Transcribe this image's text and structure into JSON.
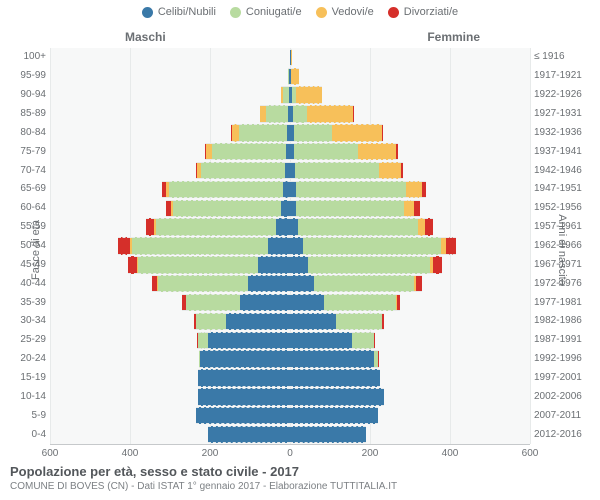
{
  "chart": {
    "type": "population-pyramid",
    "background_color": "#f7f8f8",
    "grid_color": "#e7eaea",
    "dash_color": "#9aa2a8",
    "text_color": "#6b6f73",
    "gender_left": "Maschi",
    "gender_right": "Femmine",
    "axis_left_title": "Fasce di età",
    "axis_right_title": "Anni di nascita",
    "xlim": 600,
    "xticks": [
      -600,
      -400,
      -200,
      0,
      200,
      400,
      600
    ],
    "xtick_labels": [
      "600",
      "400",
      "200",
      "0",
      "200",
      "400",
      "600"
    ],
    "legend": [
      {
        "label": "Celibi/Nubili",
        "color": "#3a79a8"
      },
      {
        "label": "Coniugati/e",
        "color": "#b8dba0"
      },
      {
        "label": "Vedovi/e",
        "color": "#f7c05a"
      },
      {
        "label": "Divorziati/e",
        "color": "#d52f2a"
      }
    ],
    "age_labels": [
      "100+",
      "95-99",
      "90-94",
      "85-89",
      "80-84",
      "75-79",
      "70-74",
      "65-69",
      "60-64",
      "55-59",
      "50-54",
      "45-49",
      "40-44",
      "35-39",
      "30-34",
      "25-29",
      "20-24",
      "15-19",
      "10-14",
      "5-9",
      "0-4"
    ],
    "birth_labels": [
      "≤ 1916",
      "1917-1921",
      "1922-1926",
      "1927-1931",
      "1932-1936",
      "1937-1941",
      "1942-1946",
      "1947-1951",
      "1952-1956",
      "1957-1961",
      "1962-1966",
      "1967-1971",
      "1972-1976",
      "1977-1981",
      "1982-1986",
      "1987-1991",
      "1992-1996",
      "1997-2001",
      "2002-2006",
      "2007-2011",
      "2012-2016"
    ],
    "rows": [
      {
        "m": {
          "single": 0,
          "married": 0,
          "widowed": 0,
          "divorced": 0
        },
        "f": {
          "single": 2,
          "married": 0,
          "widowed": 2,
          "divorced": 0
        }
      },
      {
        "m": {
          "single": 2,
          "married": 3,
          "widowed": 1,
          "divorced": 0
        },
        "f": {
          "single": 2,
          "married": 1,
          "widowed": 20,
          "divorced": 0
        }
      },
      {
        "m": {
          "single": 3,
          "married": 15,
          "widowed": 5,
          "divorced": 0
        },
        "f": {
          "single": 5,
          "married": 10,
          "widowed": 65,
          "divorced": 0
        }
      },
      {
        "m": {
          "single": 5,
          "married": 55,
          "widowed": 15,
          "divorced": 0
        },
        "f": {
          "single": 8,
          "married": 35,
          "widowed": 115,
          "divorced": 2
        }
      },
      {
        "m": {
          "single": 8,
          "married": 120,
          "widowed": 18,
          "divorced": 2
        },
        "f": {
          "single": 10,
          "married": 95,
          "widowed": 125,
          "divorced": 3
        }
      },
      {
        "m": {
          "single": 10,
          "married": 185,
          "widowed": 15,
          "divorced": 3
        },
        "f": {
          "single": 10,
          "married": 160,
          "widowed": 95,
          "divorced": 5
        }
      },
      {
        "m": {
          "single": 12,
          "married": 210,
          "widowed": 10,
          "divorced": 4
        },
        "f": {
          "single": 12,
          "married": 210,
          "widowed": 55,
          "divorced": 6
        }
      },
      {
        "m": {
          "single": 18,
          "married": 285,
          "widowed": 8,
          "divorced": 8
        },
        "f": {
          "single": 14,
          "married": 275,
          "widowed": 40,
          "divorced": 10
        }
      },
      {
        "m": {
          "single": 22,
          "married": 270,
          "widowed": 5,
          "divorced": 12
        },
        "f": {
          "single": 16,
          "married": 270,
          "widowed": 25,
          "divorced": 15
        }
      },
      {
        "m": {
          "single": 35,
          "married": 300,
          "widowed": 5,
          "divorced": 20
        },
        "f": {
          "single": 20,
          "married": 300,
          "widowed": 18,
          "divorced": 20
        }
      },
      {
        "m": {
          "single": 55,
          "married": 340,
          "widowed": 5,
          "divorced": 30
        },
        "f": {
          "single": 32,
          "married": 345,
          "widowed": 12,
          "divorced": 25
        }
      },
      {
        "m": {
          "single": 80,
          "married": 300,
          "widowed": 3,
          "divorced": 22
        },
        "f": {
          "single": 45,
          "married": 305,
          "widowed": 8,
          "divorced": 22
        }
      },
      {
        "m": {
          "single": 105,
          "married": 225,
          "widowed": 2,
          "divorced": 14
        },
        "f": {
          "single": 60,
          "married": 250,
          "widowed": 5,
          "divorced": 14
        }
      },
      {
        "m": {
          "single": 125,
          "married": 135,
          "widowed": 1,
          "divorced": 8
        },
        "f": {
          "single": 85,
          "married": 180,
          "widowed": 3,
          "divorced": 8
        }
      },
      {
        "m": {
          "single": 160,
          "married": 75,
          "widowed": 0,
          "divorced": 4
        },
        "f": {
          "single": 115,
          "married": 115,
          "widowed": 1,
          "divorced": 5
        }
      },
      {
        "m": {
          "single": 205,
          "married": 25,
          "widowed": 0,
          "divorced": 2
        },
        "f": {
          "single": 155,
          "married": 55,
          "widowed": 0,
          "divorced": 2
        }
      },
      {
        "m": {
          "single": 225,
          "married": 3,
          "widowed": 0,
          "divorced": 0
        },
        "f": {
          "single": 210,
          "married": 10,
          "widowed": 0,
          "divorced": 1
        }
      },
      {
        "m": {
          "single": 230,
          "married": 0,
          "widowed": 0,
          "divorced": 0
        },
        "f": {
          "single": 225,
          "married": 0,
          "widowed": 0,
          "divorced": 0
        }
      },
      {
        "m": {
          "single": 230,
          "married": 0,
          "widowed": 0,
          "divorced": 0
        },
        "f": {
          "single": 235,
          "married": 0,
          "widowed": 0,
          "divorced": 0
        }
      },
      {
        "m": {
          "single": 235,
          "married": 0,
          "widowed": 0,
          "divorced": 0
        },
        "f": {
          "single": 220,
          "married": 0,
          "widowed": 0,
          "divorced": 0
        }
      },
      {
        "m": {
          "single": 205,
          "married": 0,
          "widowed": 0,
          "divorced": 0
        },
        "f": {
          "single": 190,
          "married": 0,
          "widowed": 0,
          "divorced": 0
        }
      }
    ]
  },
  "footer": {
    "title": "Popolazione per età, sesso e stato civile - 2017",
    "subtitle": "COMUNE DI BOVES (CN) - Dati ISTAT 1° gennaio 2017 - Elaborazione TUTTITALIA.IT"
  }
}
